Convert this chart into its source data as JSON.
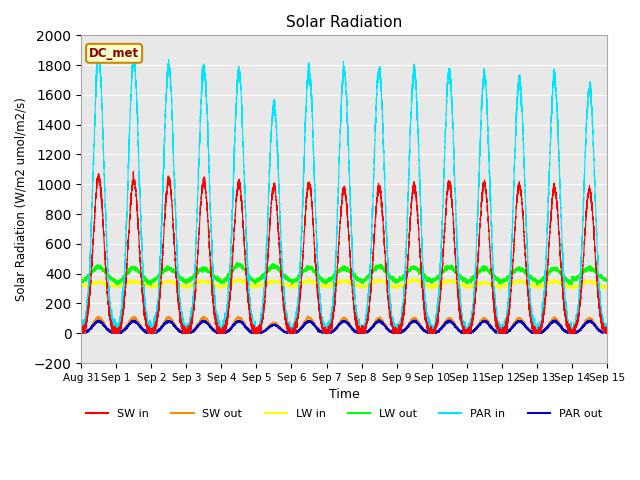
{
  "title": "Solar Radiation",
  "xlabel": "Time",
  "ylabel": "Solar Radiation (W/m2 umol/m2/s)",
  "ylim": [
    -200,
    2000
  ],
  "yticks": [
    -200,
    0,
    200,
    400,
    600,
    800,
    1000,
    1200,
    1400,
    1600,
    1800,
    2000
  ],
  "annotation": "DC_met",
  "background_color": "#ffffff",
  "plot_bg_color": "#e8e8e8",
  "series": {
    "SW_in": {
      "color": "#ff0000",
      "label": "SW in"
    },
    "SW_out": {
      "color": "#ff8c00",
      "label": "SW out"
    },
    "LW_in": {
      "color": "#ffff00",
      "label": "LW in"
    },
    "LW_out": {
      "color": "#00ff00",
      "label": "LW out"
    },
    "PAR_in": {
      "color": "#00e5ff",
      "label": "PAR in"
    },
    "PAR_out": {
      "color": "#0000cc",
      "label": "PAR out"
    }
  },
  "xtick_labels": [
    "Aug 31",
    "Sep 1",
    "Sep 2",
    "Sep 3",
    "Sep 4",
    "Sep 5",
    "Sep 6",
    "Sep 7",
    "Sep 8",
    "Sep 9",
    "Sep 10",
    "Sep 11",
    "Sep 12",
    "Sep 13",
    "Sep 14",
    "Sep 15"
  ],
  "grid_color": "#ffffff",
  "legend_ncol": 6,
  "SW_in_peaks": [
    1050,
    1030,
    1030,
    1020,
    1010,
    980,
    1000,
    970,
    980,
    990,
    1010,
    1000,
    990,
    975,
    960
  ],
  "PAR_in_peaks": [
    1860,
    1840,
    1790,
    1780,
    1760,
    1530,
    1770,
    1760,
    1770,
    1760,
    1750,
    1730,
    1700,
    1710,
    1650
  ],
  "SW_out_peaks": [
    105,
    105,
    105,
    105,
    105,
    70,
    105,
    100,
    100,
    100,
    100,
    100,
    100,
    100,
    100
  ],
  "PAR_out_peaks": [
    80,
    80,
    80,
    80,
    80,
    55,
    80,
    80,
    80,
    80,
    80,
    80,
    80,
    80,
    80
  ],
  "pts_per_day": 480
}
